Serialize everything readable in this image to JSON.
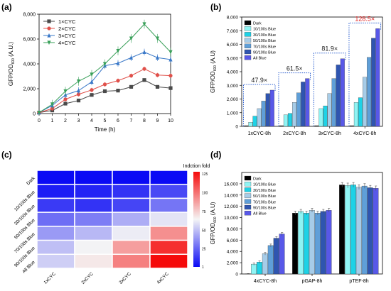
{
  "chart_data": [
    {
      "panel": "(a)",
      "type": "line",
      "xlabel": "Time (h)",
      "ylabel_main": "GFP/OD",
      "ylabel_sub": "600",
      "ylabel_unit": "(A.U.)",
      "xlim": [
        0,
        10
      ],
      "ylim": [
        0,
        8000
      ],
      "xticks": [
        "0",
        "1",
        "2",
        "3",
        "4",
        "5",
        "6",
        "7",
        "8",
        "9",
        "10"
      ],
      "yticks": [
        "0",
        "2,000",
        "4,000",
        "6,000",
        "8,000"
      ],
      "x": [
        0,
        1,
        2,
        3,
        4,
        5,
        6,
        7,
        8,
        9,
        10
      ],
      "series": [
        {
          "name": "1×CYC",
          "color": "#4a4a4a",
          "marker": "square",
          "values": [
            80,
            250,
            800,
            1050,
            1500,
            1800,
            1850,
            2150,
            2700,
            2150,
            2050
          ]
        },
        {
          "name": "2×CYC",
          "color": "#e0504a",
          "marker": "circle",
          "values": [
            80,
            400,
            1150,
            1550,
            1900,
            2350,
            2650,
            3050,
            3600,
            3100,
            3050
          ]
        },
        {
          "name": "3×CYC",
          "color": "#3a78c8",
          "marker": "triangle",
          "values": [
            80,
            650,
            1500,
            1850,
            2550,
            3850,
            4050,
            4500,
            4950,
            4500,
            4350
          ]
        },
        {
          "name": "4×CYC",
          "color": "#3aa05a",
          "marker": "triangle-down",
          "values": [
            80,
            750,
            1800,
            2600,
            3150,
            4000,
            5050,
            6050,
            7200,
            6050,
            4950
          ]
        }
      ],
      "legend_position": "top-left"
    },
    {
      "panel": "(b)",
      "type": "bar",
      "ylabel_main": "GFP/OD",
      "ylabel_sub": "600",
      "ylabel_unit": "(A.U)",
      "ylim": [
        0,
        8000
      ],
      "yticks": [
        "0",
        "1,000",
        "2,000",
        "3,000",
        "4,000",
        "5,000",
        "6,000",
        "7,000",
        "8,000"
      ],
      "categories": [
        "1xCYC-8h",
        "2xCYC-8h",
        "3xCYC-8h",
        "4xCYC-8h"
      ],
      "series": [
        {
          "name": "Dark",
          "color": "#000000",
          "values": [
            50,
            50,
            50,
            50
          ]
        },
        {
          "name": "10/100s Blue",
          "color": "#8ff4f4",
          "values": [
            300,
            850,
            1300,
            1750
          ]
        },
        {
          "name": "30/100s Blue",
          "color": "#1ed2e6",
          "values": [
            750,
            950,
            1500,
            2100
          ]
        },
        {
          "name": "50/100s Blue",
          "color": "#a6cce8",
          "values": [
            1300,
            1750,
            2400,
            3600
          ]
        },
        {
          "name": "70/100s Blue",
          "color": "#5f9fd8",
          "values": [
            1850,
            2450,
            3500,
            5050
          ]
        },
        {
          "name": "90/100s Blue",
          "color": "#2f55b0",
          "values": [
            2400,
            3250,
            4500,
            6450
          ]
        },
        {
          "name": "All Blue",
          "color": "#5858e8",
          "values": [
            2650,
            3500,
            4950,
            7150
          ]
        }
      ],
      "annotations": [
        {
          "text": "47.9×",
          "category": 0,
          "color": "#222222"
        },
        {
          "text": "61.5×",
          "category": 1,
          "color": "#222222"
        },
        {
          "text": "81.9×",
          "category": 2,
          "color": "#222222"
        },
        {
          "text": "128.5×",
          "category": 3,
          "color": "#e02020"
        }
      ],
      "legend_position": "top-left"
    },
    {
      "panel": "(c)",
      "type": "heatmap",
      "rows": [
        "Dark",
        "10/100s Blue",
        "30/100s Blue",
        "50/100s Blue",
        "70/100s Blue",
        "90/100s Blue",
        "All Blue"
      ],
      "cols": [
        "1xCYC",
        "2xCYC",
        "3xCYC",
        "4xCYC"
      ],
      "values": [
        [
          1,
          1,
          1,
          1
        ],
        [
          6,
          8,
          12,
          18
        ],
        [
          14,
          12,
          17,
          30
        ],
        [
          28,
          32,
          45,
          60
        ],
        [
          40,
          48,
          62,
          92
        ],
        [
          50,
          64,
          88,
          118
        ],
        [
          54,
          68,
          96,
          128
        ]
      ],
      "colorbar_title": "Indction fold",
      "colorbar_ticks": [
        "1",
        "25",
        "50",
        "75",
        "100",
        "125"
      ],
      "colorbar_range": [
        1,
        128
      ]
    },
    {
      "panel": "(d)",
      "type": "bar",
      "ylabel_main": "GFP/OD",
      "ylabel_sub": "600",
      "ylabel_unit": "(A.U)",
      "ylim": [
        0,
        18000
      ],
      "yticks": [
        "0",
        "2,000",
        "4,000",
        "6,000",
        "8,000",
        "10,000",
        "12,000",
        "14,000",
        "16,000"
      ],
      "categories": [
        "4xCYC-8h",
        "pGAP-8h",
        "pTEF-8h"
      ],
      "series": [
        {
          "name": "Dark",
          "color": "#000000",
          "values": [
            50,
            10800,
            15800
          ]
        },
        {
          "name": "10/100s Blue",
          "color": "#8ff4f4",
          "values": [
            1750,
            11100,
            15700
          ]
        },
        {
          "name": "30/100s Blue",
          "color": "#1ed2e6",
          "values": [
            2100,
            10800,
            15800
          ]
        },
        {
          "name": "50/100s Blue",
          "color": "#a6cce8",
          "values": [
            3600,
            11300,
            15400
          ]
        },
        {
          "name": "70/100s Blue",
          "color": "#5f9fd8",
          "values": [
            5050,
            10800,
            15600
          ]
        },
        {
          "name": "90/100s Blue",
          "color": "#2f55b0",
          "values": [
            6350,
            11100,
            15300
          ]
        },
        {
          "name": "All Blue",
          "color": "#5858e8",
          "values": [
            7100,
            11300,
            15200
          ]
        }
      ],
      "legend_position": "top-left"
    }
  ]
}
